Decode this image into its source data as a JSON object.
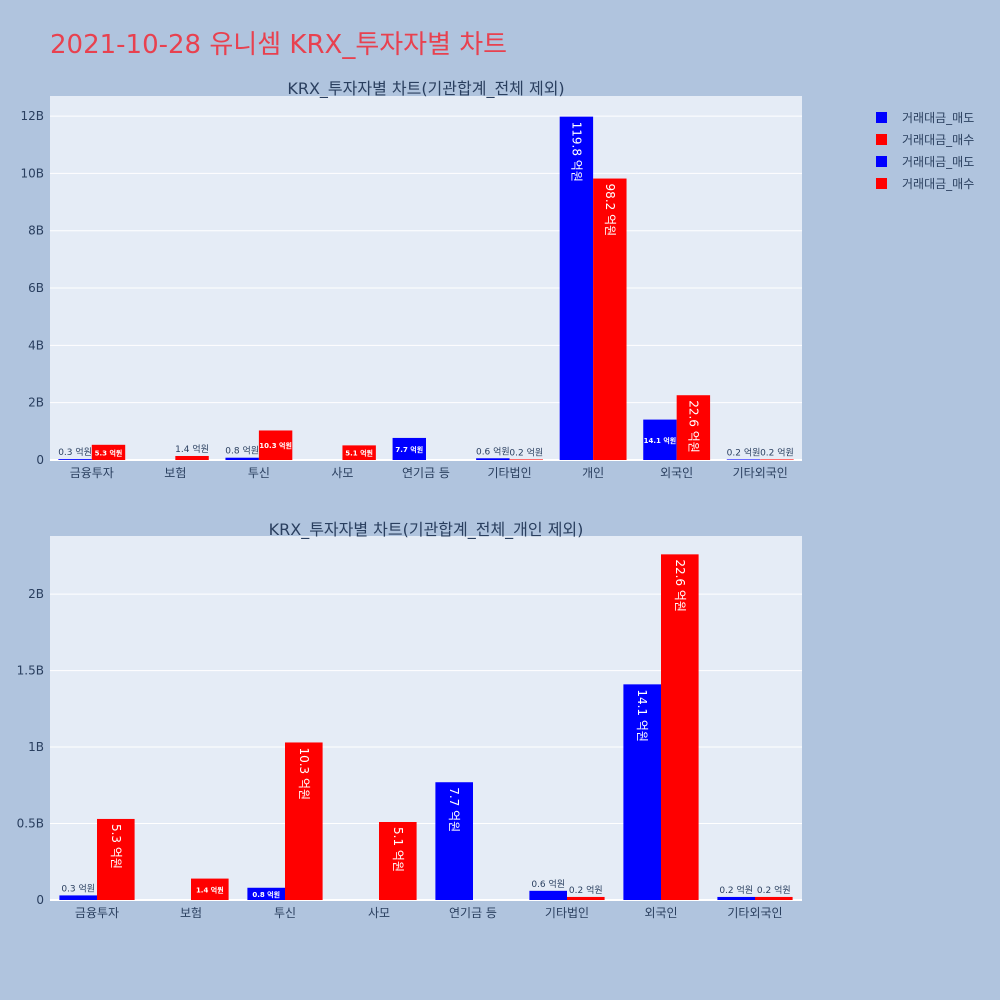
{
  "page": {
    "title": "2021-10-28 유니셈 KRX_투자자별 차트"
  },
  "legend": [
    {
      "label": "거래대금_매도",
      "color": "#0000ff"
    },
    {
      "label": "거래대금_매수",
      "color": "#ff0000"
    },
    {
      "label": "거래대금_매도",
      "color": "#0000ff"
    },
    {
      "label": "거래대금_매수",
      "color": "#ff0000"
    }
  ],
  "colors": {
    "sell": "#0000ff",
    "buy": "#ff0000",
    "plot_bg": "#e5ecf6",
    "page_bg": "#b0c4de"
  },
  "chart_data": [
    {
      "type": "bar",
      "title": "KRX_투자자별 차트(기관합계_전체 제외)",
      "categories": [
        "금융투자",
        "보험",
        "투신",
        "사모",
        "연기금 등",
        "기타법인",
        "개인",
        "외국인",
        "기타외국인"
      ],
      "series": [
        {
          "name": "거래대금_매도",
          "values": [
            0.03,
            0,
            0.08,
            0,
            0.77,
            0.06,
            11.98,
            1.41,
            0.02
          ],
          "labels": [
            "0.3 억원",
            "",
            "0.8 억원",
            "",
            "7.7 억원",
            "0.6 억원",
            "119.8 억원",
            "14.1 억원",
            "0.2 억원"
          ]
        },
        {
          "name": "거래대금_매수",
          "values": [
            0.53,
            0.14,
            1.03,
            0.51,
            0,
            0.02,
            9.82,
            2.26,
            0.02
          ],
          "labels": [
            "5.3 억원",
            "1.4 억원",
            "10.3 억원",
            "5.1 억원",
            "",
            "0.2 억원",
            "98.2 억원",
            "22.6 억원",
            "0.2 억원"
          ]
        }
      ],
      "ylim": [
        0,
        12.7
      ],
      "yticks": [
        0,
        2,
        4,
        6,
        8,
        10,
        12
      ],
      "ytick_labels": [
        "0",
        "2B",
        "4B",
        "6B",
        "8B",
        "10B",
        "12B"
      ],
      "grid": true
    },
    {
      "type": "bar",
      "title": "KRX_투자자별 차트(기관합계_전체_개인 제외)",
      "categories": [
        "금융투자",
        "보험",
        "투신",
        "사모",
        "연기금 등",
        "기타법인",
        "외국인",
        "기타외국인"
      ],
      "series": [
        {
          "name": "거래대금_매도",
          "values": [
            0.03,
            0,
            0.08,
            0,
            0.77,
            0.06,
            1.41,
            0.02
          ],
          "labels": [
            "0.3 억원",
            "",
            "0.8 억원",
            "",
            "7.7 억원",
            "0.6 억원",
            "14.1 억원",
            "0.2 억원"
          ]
        },
        {
          "name": "거래대금_매수",
          "values": [
            0.53,
            0.14,
            1.03,
            0.51,
            0,
            0.02,
            2.26,
            0.02
          ],
          "labels": [
            "5.3 억원",
            "1.4 억원",
            "10.3 억원",
            "5.1 억원",
            "",
            "0.2 억원",
            "22.6 억원",
            "0.2 억원"
          ]
        }
      ],
      "ylim": [
        0,
        2.38
      ],
      "yticks": [
        0,
        0.5,
        1,
        1.5,
        2
      ],
      "ytick_labels": [
        "0",
        "0.5B",
        "1B",
        "1.5B",
        "2B"
      ],
      "grid": true
    }
  ]
}
